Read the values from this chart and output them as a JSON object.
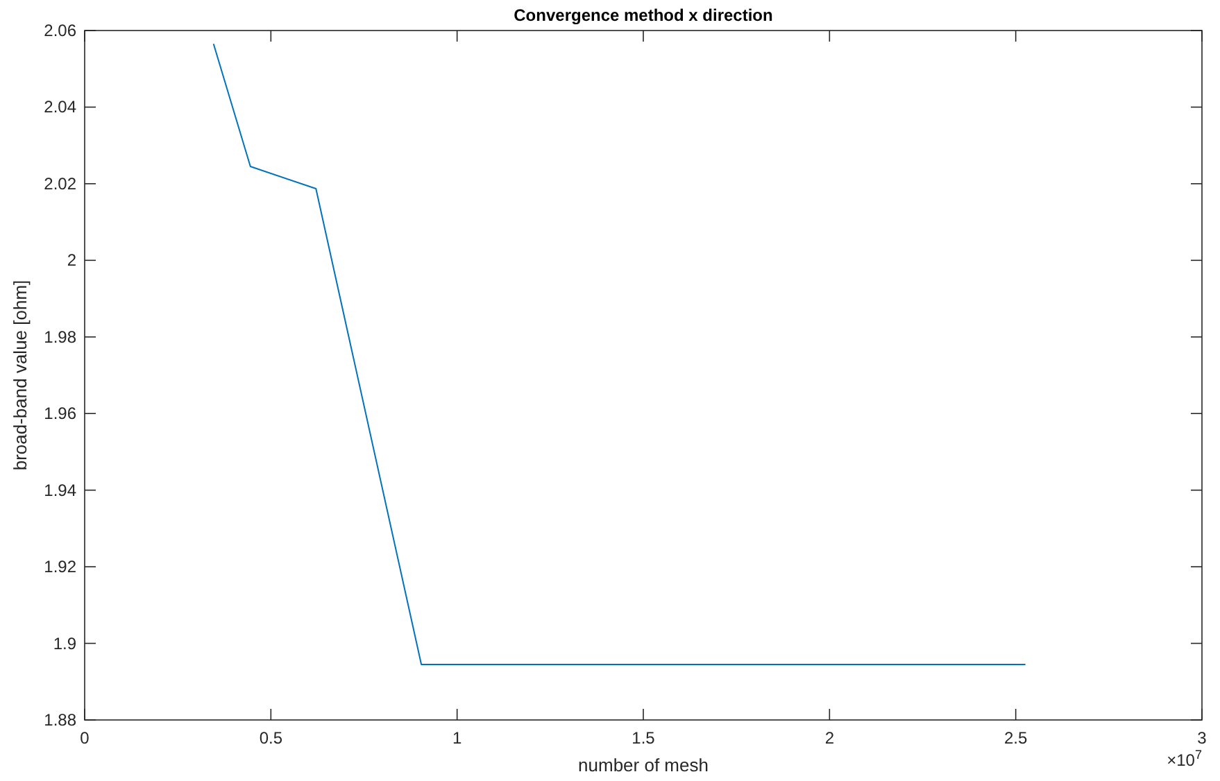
{
  "chart_data": {
    "type": "line",
    "title": "Convergence method x direction",
    "xlabel": "number of mesh",
    "ylabel": "broad-band value [ohm]",
    "x": [
      0.346,
      0.445,
      0.621,
      0.904,
      2.526
    ],
    "series": [
      {
        "color": "#0072bd",
        "values": [
          2.0565,
          2.0245,
          2.0187,
          1.8945,
          1.8945
        ]
      }
    ],
    "xlim": [
      0,
      3
    ],
    "xticks": [
      0,
      0.5,
      1,
      1.5,
      2,
      2.5,
      3
    ],
    "ylim": [
      1.88,
      2.06
    ],
    "yticks": [
      1.88,
      1.9,
      1.92,
      1.94,
      1.96,
      1.98,
      2,
      2.02,
      2.04,
      2.06
    ],
    "annotations": [
      "×10$^{7}$"
    ],
    "grid": false
  }
}
